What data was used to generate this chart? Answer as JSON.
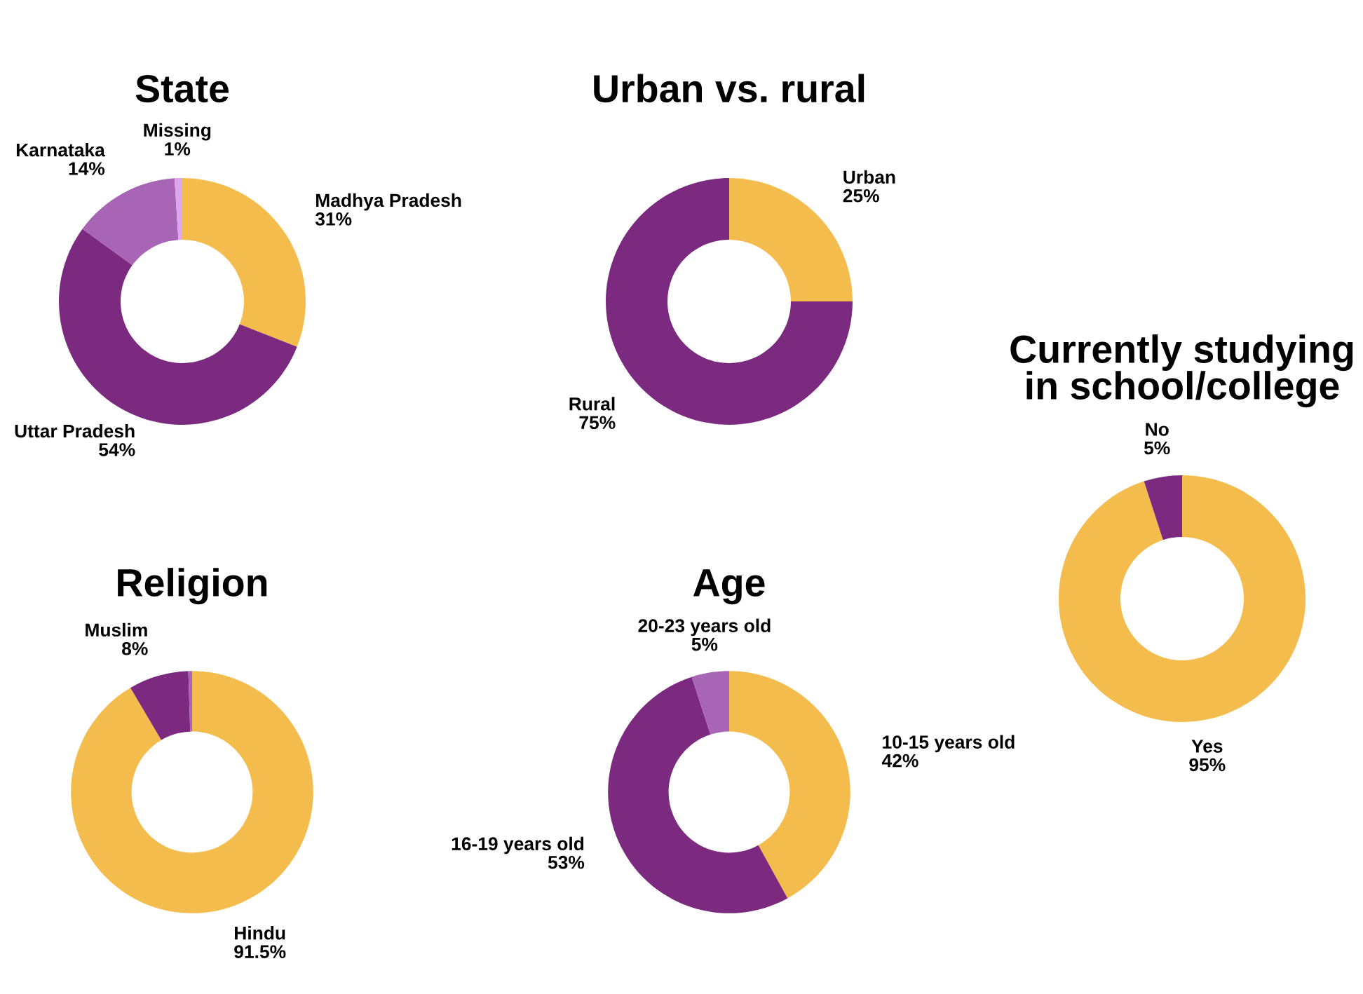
{
  "chart_data": [
    {
      "type": "donut",
      "title": "State",
      "categories": [
        "Madhya Pradesh",
        "Uttar Pradesh",
        "Karnataka",
        "Missing"
      ],
      "values": [
        31,
        54,
        14,
        1
      ],
      "value_labels": [
        "31%",
        "54%",
        "14%",
        "1%"
      ],
      "colors": [
        "#f4bc4c",
        "#7b2a7f",
        "#a865b5",
        "#dca6ea"
      ]
    },
    {
      "type": "donut",
      "title": "Urban vs. rural",
      "categories": [
        "Urban",
        "Rural"
      ],
      "values": [
        25,
        75
      ],
      "value_labels": [
        "25%",
        "75%"
      ],
      "colors": [
        "#f4bc4c",
        "#7b2a7f"
      ]
    },
    {
      "type": "donut",
      "title": "Currently studying\nin school/college",
      "categories": [
        "Yes",
        "No"
      ],
      "values": [
        95,
        5
      ],
      "value_labels": [
        "95%",
        "5%"
      ],
      "colors": [
        "#f4bc4c",
        "#7b2a7f"
      ]
    },
    {
      "type": "donut",
      "title": "Religion",
      "categories": [
        "Hindu",
        "Muslim",
        null
      ],
      "values": [
        91.5,
        8,
        0.5
      ],
      "value_labels": [
        "91.5%",
        "8%",
        null
      ],
      "colors": [
        "#f4bc4c",
        "#7b2a7f",
        "#a865b5"
      ]
    },
    {
      "type": "donut",
      "title": "Age",
      "categories": [
        "10-15 years old",
        "16-19 years old",
        "20-23 years old"
      ],
      "values": [
        42,
        53,
        5
      ],
      "value_labels": [
        "42%",
        "53%",
        "5%"
      ],
      "colors": [
        "#f4bc4c",
        "#7b2a7f",
        "#a865b5"
      ]
    }
  ]
}
